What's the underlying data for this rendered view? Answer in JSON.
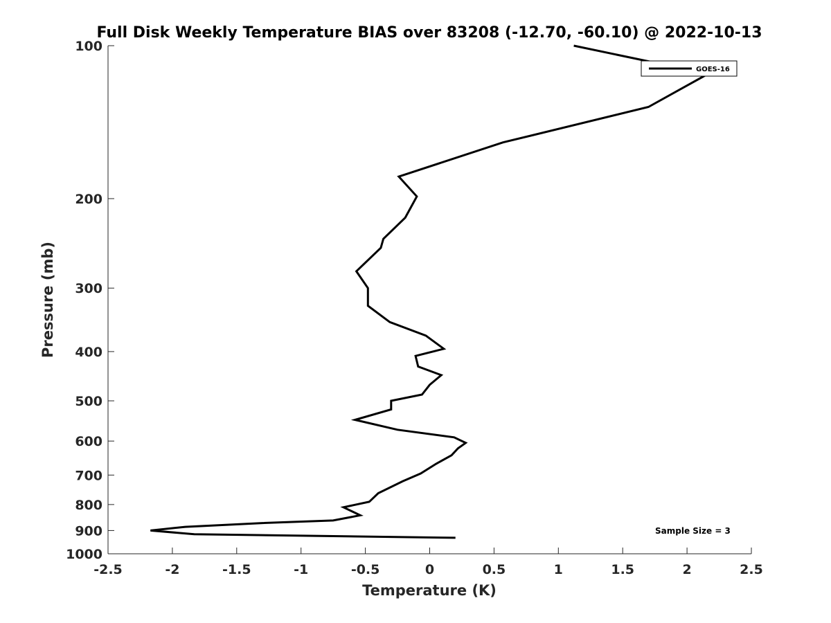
{
  "chart_data": {
    "type": "line",
    "title": "Full Disk Weekly Temperature BIAS over 83208 (-12.70, -60.10) @ 2022-10-13",
    "xlabel": "Temperature (K)",
    "ylabel": "Pressure (mb)",
    "xlim": [
      -2.5,
      2.5
    ],
    "ylim": [
      100,
      1000
    ],
    "y_scale": "log",
    "y_reversed": true,
    "x_ticks": [
      -2.5,
      -2,
      -1.5,
      -1,
      -0.5,
      0,
      0.5,
      1,
      1.5,
      2,
      2.5
    ],
    "x_tick_labels": [
      "-2.5",
      "-2",
      "-1.5",
      "-1",
      "-0.5",
      "0",
      "0.5",
      "1",
      "1.5",
      "2",
      "2.5"
    ],
    "y_ticks": [
      100,
      200,
      300,
      400,
      500,
      600,
      700,
      800,
      900,
      1000
    ],
    "y_tick_labels": [
      "100",
      "200",
      "300",
      "400",
      "500",
      "600",
      "700",
      "800",
      "900",
      "1000"
    ],
    "grid": false,
    "legend_position": "top-right",
    "series": [
      {
        "name": "GOES-16",
        "color": "#000000",
        "x": [
          1.12,
          1.9,
          2.18,
          1.7,
          0.57,
          -0.24,
          -0.1,
          -0.19,
          -0.36,
          -0.38,
          -0.57,
          -0.48,
          -0.48,
          -0.31,
          -0.03,
          0.11,
          -0.11,
          -0.09,
          0.09,
          0.0,
          -0.06,
          -0.3,
          -0.3,
          -0.58,
          -0.25,
          0.19,
          0.28,
          0.22,
          0.17,
          0.05,
          -0.07,
          -0.21,
          -0.4,
          -0.47,
          -0.67,
          -0.54,
          -0.75,
          -1.3,
          -1.9,
          -2.17,
          -1.83,
          0.2
        ],
        "y": [
          100,
          110,
          113,
          132,
          155,
          181,
          198,
          218,
          240,
          250,
          278,
          300,
          325,
          350,
          372,
          395,
          408,
          428,
          445,
          465,
          486,
          500,
          520,
          545,
          570,
          590,
          605,
          620,
          640,
          665,
          695,
          720,
          760,
          790,
          810,
          840,
          860,
          870,
          885,
          900,
          915,
          930
        ]
      }
    ],
    "annotation": "Sample Size = 3"
  }
}
